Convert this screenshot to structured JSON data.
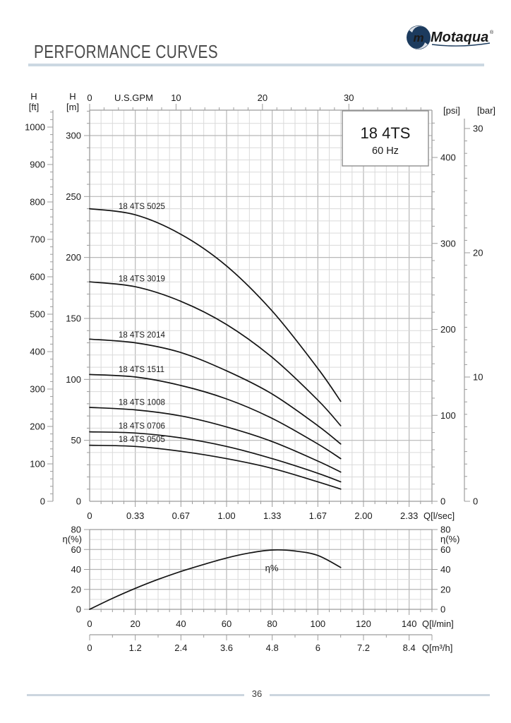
{
  "header": {
    "title": "PERFORMANCE CURVES",
    "logo_text": "Motaqua",
    "reg_mark": "®",
    "logo_monogram": "m"
  },
  "footer": {
    "page_number": "36"
  },
  "chart_data": [
    {
      "type": "line",
      "title": "18 4TS",
      "subtitle": "60 Hz",
      "x_top": {
        "label": "U.S.GPM",
        "ticks": [
          0,
          10,
          20,
          30
        ]
      },
      "x_bottom": {
        "label": "Q[l/sec]",
        "ticks": [
          "0",
          "0.33",
          "0.67",
          "1.00",
          "1.33",
          "1.67",
          "2.00",
          "2.33"
        ]
      },
      "y_ft": {
        "label1": "H",
        "label2": "[ft]",
        "ticks": [
          0,
          100,
          200,
          300,
          400,
          500,
          600,
          700,
          800,
          900,
          1000
        ]
      },
      "y_m": {
        "label1": "H",
        "label2": "[m]",
        "ticks": [
          0,
          50,
          100,
          150,
          200,
          250,
          300
        ]
      },
      "y_psi": {
        "label": "[psi]",
        "ticks": [
          0,
          100,
          200,
          300,
          400
        ]
      },
      "y_bar": {
        "label": "[bar]",
        "ticks": [
          0,
          10,
          20,
          30
        ]
      },
      "xlabel_units": "Q in l/min for series points",
      "q_lmin": [
        0,
        20,
        40,
        60,
        80,
        100,
        110
      ],
      "series": [
        {
          "name": "18 4TS 5025",
          "values": [
            240,
            235,
            219,
            193,
            156,
            109,
            82
          ]
        },
        {
          "name": "18 4TS 3019",
          "values": [
            180,
            176,
            164,
            145,
            118,
            83,
            62
          ]
        },
        {
          "name": "18 4TS 2014",
          "values": [
            133,
            130,
            122,
            107,
            88,
            62,
            47
          ]
        },
        {
          "name": "18 4TS 1511",
          "values": [
            104,
            102,
            95,
            84,
            68,
            47,
            35
          ]
        },
        {
          "name": "18 4TS 1008",
          "values": [
            77,
            75,
            70,
            61,
            49,
            33,
            24
          ]
        },
        {
          "name": "18 4TS 0706",
          "values": [
            57,
            56,
            52,
            45,
            35,
            23,
            16
          ]
        },
        {
          "name": "18 4TS 0505",
          "values": [
            46,
            45,
            41,
            35,
            27,
            16,
            10
          ]
        }
      ]
    },
    {
      "type": "line",
      "curve_label": "η%",
      "y_left": {
        "label": "η(%)",
        "ticks": [
          0,
          20,
          40,
          60,
          80
        ]
      },
      "y_right": {
        "label": "η(%)",
        "ticks": [
          0,
          20,
          40,
          60,
          80
        ]
      },
      "x_lmin": {
        "label": "Q[l/min]",
        "ticks": [
          0,
          20,
          40,
          60,
          80,
          100,
          120,
          140
        ]
      },
      "x_m3h": {
        "label": "Q[m³/h]",
        "ticks": [
          "0",
          "1.2",
          "2.4",
          "3.6",
          "4.8",
          "6",
          "7.2",
          "8.4"
        ]
      },
      "q_lmin": [
        0,
        10,
        20,
        30,
        40,
        50,
        60,
        70,
        80,
        90,
        100,
        110
      ],
      "values": [
        0,
        11,
        21,
        30,
        38,
        45,
        51.5,
        56.5,
        59.5,
        58.5,
        54,
        42
      ]
    }
  ]
}
